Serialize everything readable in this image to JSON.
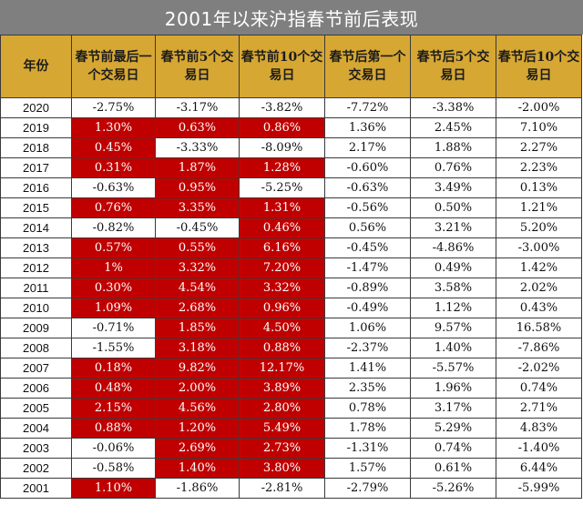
{
  "title": "2001年以来沪指春节前后表现",
  "colors": {
    "title_bg": "#7f7f7f",
    "header_bg": "#d6a733",
    "highlight": "#c00000"
  },
  "columns": [
    "年份",
    "春节前最后一个交易日",
    "春节前5个交易日",
    "春节前10个交易日",
    "春节后第一个交易日",
    "春节后5个交易日",
    "春节后10个交易日"
  ],
  "rows": [
    [
      "2020",
      "-2.75%",
      "-3.17%",
      "-3.82%",
      "-7.72%",
      "-3.38%",
      "-2.00%"
    ],
    [
      "2019",
      "1.30%",
      "0.63%",
      "0.86%",
      "1.36%",
      "2.45%",
      "7.10%"
    ],
    [
      "2018",
      "0.45%",
      "-3.33%",
      "-8.09%",
      "2.17%",
      "1.88%",
      "2.27%"
    ],
    [
      "2017",
      "0.31%",
      "1.87%",
      "1.28%",
      "-0.60%",
      "0.76%",
      "2.23%"
    ],
    [
      "2016",
      "-0.63%",
      "0.95%",
      "-5.25%",
      "-0.63%",
      "3.49%",
      "0.13%"
    ],
    [
      "2015",
      "0.76%",
      "3.35%",
      "1.31%",
      "-0.56%",
      "0.50%",
      "1.21%"
    ],
    [
      "2014",
      "-0.82%",
      "-0.45%",
      "0.46%",
      "0.56%",
      "3.21%",
      "5.20%"
    ],
    [
      "2013",
      "0.57%",
      "0.55%",
      "6.16%",
      "-0.45%",
      "-4.86%",
      "-3.00%"
    ],
    [
      "2012",
      "1%",
      "3.32%",
      "7.20%",
      "-1.47%",
      "0.49%",
      "1.42%"
    ],
    [
      "2011",
      "0.30%",
      "4.54%",
      "3.32%",
      "-0.89%",
      "3.58%",
      "2.02%"
    ],
    [
      "2010",
      "1.09%",
      "2.68%",
      "0.96%",
      "-0.49%",
      "1.12%",
      "0.43%"
    ],
    [
      "2009",
      "-0.71%",
      "1.85%",
      "4.50%",
      "1.06%",
      "9.57%",
      "16.58%"
    ],
    [
      "2008",
      "-1.55%",
      "3.18%",
      "0.88%",
      "-2.37%",
      "1.40%",
      "-7.86%"
    ],
    [
      "2007",
      "0.18%",
      "9.82%",
      "12.17%",
      "1.41%",
      "-5.57%",
      "-2.02%"
    ],
    [
      "2006",
      "0.48%",
      "2.00%",
      "3.89%",
      "2.35%",
      "1.96%",
      "0.74%"
    ],
    [
      "2005",
      "2.15%",
      "4.56%",
      "2.80%",
      "0.78%",
      "3.17%",
      "2.71%"
    ],
    [
      "2004",
      "0.88%",
      "1.20%",
      "5.49%",
      "1.78%",
      "5.29%",
      "4.83%"
    ],
    [
      "2003",
      "-0.06%",
      "2.69%",
      "2.73%",
      "-1.31%",
      "0.74%",
      "-1.40%"
    ],
    [
      "2002",
      "-0.58%",
      "1.40%",
      "3.80%",
      "1.57%",
      "0.61%",
      "6.44%"
    ],
    [
      "2001",
      "1.10%",
      "-1.86%",
      "-2.81%",
      "-2.79%",
      "-5.26%",
      "-5.99%"
    ]
  ]
}
